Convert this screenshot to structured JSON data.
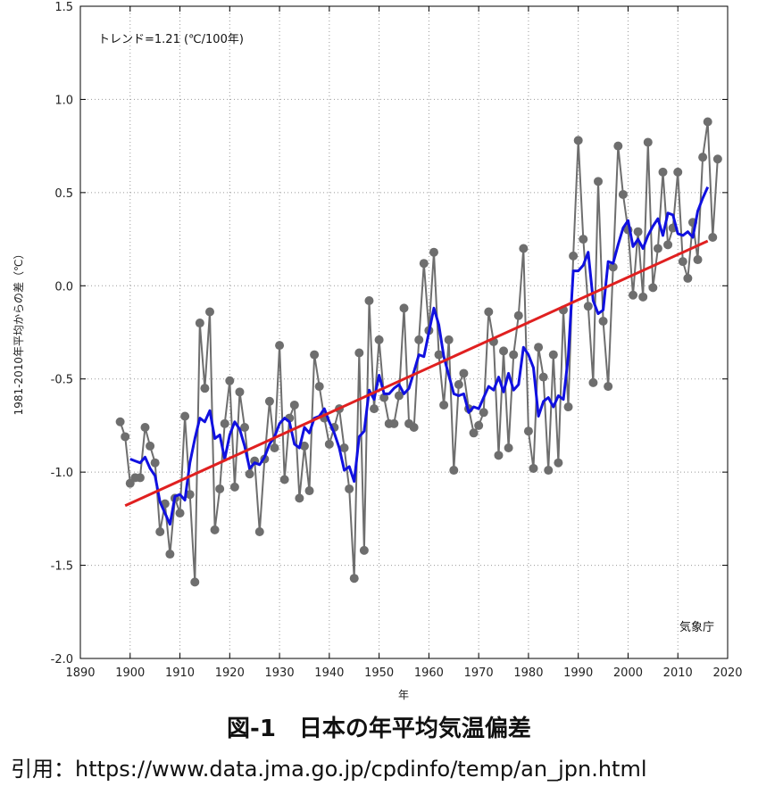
{
  "chart_data": {
    "type": "line",
    "title": "",
    "xlabel": "年",
    "ylabel": "1981-2010年平均からの差（℃）",
    "xlim": [
      1890,
      2020
    ],
    "ylim": [
      -2.0,
      1.5
    ],
    "xticks": [
      1890,
      1900,
      1910,
      1920,
      1930,
      1940,
      1950,
      1960,
      1970,
      1980,
      1990,
      2000,
      2010,
      2020
    ],
    "yticks": [
      -2.0,
      -1.5,
      -1.0,
      -0.5,
      0.0,
      0.5,
      1.0,
      1.5
    ],
    "grid": true,
    "annotation": "トレンド=1.21 (℃/100年)",
    "credit": "気象庁",
    "colors": {
      "annual": "#6e6e6e",
      "moving_average": "#1010e0",
      "trend": "#e02020"
    },
    "series": [
      {
        "key": "annual",
        "x": [
          1898,
          1899,
          1900,
          1901,
          1902,
          1903,
          1904,
          1905,
          1906,
          1907,
          1908,
          1909,
          1910,
          1911,
          1912,
          1913,
          1914,
          1915,
          1916,
          1917,
          1918,
          1919,
          1920,
          1921,
          1922,
          1923,
          1924,
          1925,
          1926,
          1927,
          1928,
          1929,
          1930,
          1931,
          1932,
          1933,
          1934,
          1935,
          1936,
          1937,
          1938,
          1939,
          1940,
          1941,
          1942,
          1943,
          1944,
          1945,
          1946,
          1947,
          1948,
          1949,
          1950,
          1951,
          1952,
          1953,
          1954,
          1955,
          1956,
          1957,
          1958,
          1959,
          1960,
          1961,
          1962,
          1963,
          1964,
          1965,
          1966,
          1967,
          1968,
          1969,
          1970,
          1971,
          1972,
          1973,
          1974,
          1975,
          1976,
          1977,
          1978,
          1979,
          1980,
          1981,
          1982,
          1983,
          1984,
          1985,
          1986,
          1987,
          1988,
          1989,
          1990,
          1991,
          1992,
          1993,
          1994,
          1995,
          1996,
          1997,
          1998,
          1999,
          2000,
          2001,
          2002,
          2003,
          2004,
          2005,
          2006,
          2007,
          2008,
          2009,
          2010,
          2011,
          2012,
          2013,
          2014,
          2015,
          2016,
          2017,
          2018
        ],
        "values": [
          -0.73,
          -0.81,
          -1.06,
          -1.03,
          -1.03,
          -0.76,
          -0.86,
          -0.95,
          -1.32,
          -1.17,
          -1.44,
          -1.14,
          -1.22,
          -0.7,
          -1.12,
          -1.59,
          -0.2,
          -0.55,
          -0.14,
          -1.31,
          -1.09,
          -0.74,
          -0.51,
          -1.08,
          -0.57,
          -0.76,
          -1.01,
          -0.94,
          -1.32,
          -0.93,
          -0.62,
          -0.87,
          -0.32,
          -1.04,
          -0.71,
          -0.64,
          -1.14,
          -0.86,
          -1.1,
          -0.37,
          -0.54,
          -0.71,
          -0.85,
          -0.76,
          -0.66,
          -0.87,
          -1.09,
          -1.57,
          -0.36,
          -1.42,
          -0.08,
          -0.66,
          -0.29,
          -0.6,
          -0.74,
          -0.74,
          -0.59,
          -0.12,
          -0.74,
          -0.76,
          -0.29,
          0.12,
          -0.24,
          0.18,
          -0.37,
          -0.64,
          -0.29,
          -0.99,
          -0.53,
          -0.47,
          -0.66,
          -0.79,
          -0.75,
          -0.68,
          -0.14,
          -0.3,
          -0.91,
          -0.35,
          -0.87,
          -0.37,
          -0.16,
          0.2,
          -0.78,
          -0.98,
          -0.33,
          -0.49,
          -0.99,
          -0.37,
          -0.95,
          -0.13,
          -0.65,
          0.16,
          0.78,
          0.25,
          -0.11,
          -0.52,
          0.56,
          -0.19,
          -0.54,
          0.1,
          0.75,
          0.49,
          0.3,
          -0.05,
          0.29,
          -0.06,
          0.77,
          -0.01,
          0.2,
          0.61,
          0.22,
          0.31,
          0.61,
          0.13,
          0.04,
          0.34,
          0.14,
          0.69,
          0.88,
          0.26,
          0.68
        ]
      },
      {
        "key": "moving_average",
        "x": [
          1900,
          1901,
          1902,
          1903,
          1904,
          1905,
          1906,
          1907,
          1908,
          1909,
          1910,
          1911,
          1912,
          1913,
          1914,
          1915,
          1916,
          1917,
          1918,
          1919,
          1920,
          1921,
          1922,
          1923,
          1924,
          1925,
          1926,
          1927,
          1928,
          1929,
          1930,
          1931,
          1932,
          1933,
          1934,
          1935,
          1936,
          1937,
          1938,
          1939,
          1940,
          1941,
          1942,
          1943,
          1944,
          1945,
          1946,
          1947,
          1948,
          1949,
          1950,
          1951,
          1952,
          1953,
          1954,
          1955,
          1956,
          1957,
          1958,
          1959,
          1960,
          1961,
          1962,
          1963,
          1964,
          1965,
          1966,
          1967,
          1968,
          1969,
          1970,
          1971,
          1972,
          1973,
          1974,
          1975,
          1976,
          1977,
          1978,
          1979,
          1980,
          1981,
          1982,
          1983,
          1984,
          1985,
          1986,
          1987,
          1988,
          1989,
          1990,
          1991,
          1992,
          1993,
          1994,
          1995,
          1996,
          1997,
          1998,
          1999,
          2000,
          2001,
          2002,
          2003,
          2004,
          2005,
          2006,
          2007,
          2008,
          2009,
          2010,
          2011,
          2012,
          2013,
          2014,
          2015,
          2016
        ],
        "values": [
          -0.93,
          -0.94,
          -0.95,
          -0.92,
          -0.98,
          -1.02,
          -1.16,
          -1.22,
          -1.28,
          -1.13,
          -1.12,
          -1.15,
          -0.95,
          -0.82,
          -0.71,
          -0.73,
          -0.67,
          -0.82,
          -0.8,
          -0.93,
          -0.8,
          -0.73,
          -0.77,
          -0.86,
          -0.98,
          -0.95,
          -0.96,
          -0.92,
          -0.85,
          -0.81,
          -0.74,
          -0.71,
          -0.73,
          -0.85,
          -0.87,
          -0.76,
          -0.79,
          -0.71,
          -0.7,
          -0.66,
          -0.73,
          -0.79,
          -0.87,
          -0.99,
          -0.97,
          -1.05,
          -0.81,
          -0.78,
          -0.56,
          -0.61,
          -0.48,
          -0.58,
          -0.58,
          -0.55,
          -0.53,
          -0.58,
          -0.55,
          -0.46,
          -0.37,
          -0.38,
          -0.25,
          -0.12,
          -0.21,
          -0.38,
          -0.48,
          -0.58,
          -0.59,
          -0.58,
          -0.68,
          -0.65,
          -0.66,
          -0.6,
          -0.54,
          -0.56,
          -0.49,
          -0.57,
          -0.47,
          -0.56,
          -0.53,
          -0.33,
          -0.37,
          -0.44,
          -0.7,
          -0.62,
          -0.6,
          -0.65,
          -0.59,
          -0.61,
          -0.38,
          0.08,
          0.08,
          0.11,
          0.18,
          -0.08,
          -0.15,
          -0.13,
          0.13,
          0.12,
          0.22,
          0.31,
          0.35,
          0.21,
          0.25,
          0.2,
          0.27,
          0.32,
          0.36,
          0.27,
          0.39,
          0.38,
          0.28,
          0.27,
          0.29,
          0.26,
          0.4,
          0.47,
          0.53
        ]
      },
      {
        "key": "trend",
        "x": [
          1899,
          2016
        ],
        "values": [
          -1.18,
          0.24
        ]
      }
    ]
  },
  "caption": {
    "title": "図-1　日本の年平均気温偏差",
    "source": "引用：https://www.data.jma.go.jp/cpdinfo/temp/an_jpn.html"
  }
}
